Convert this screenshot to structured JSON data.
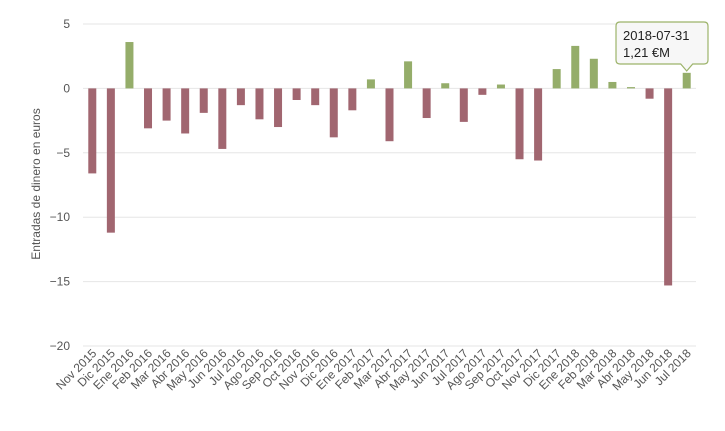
{
  "chart_data": {
    "type": "bar",
    "ylabel": "Entradas de dinero en euros",
    "xlabel": "",
    "title": "",
    "ylim": [
      -20,
      5
    ],
    "yticks": [
      5,
      0,
      -5,
      -10,
      -15,
      -20
    ],
    "grid": true,
    "legend": "none",
    "colors": {
      "positive": "#95ad6a",
      "negative": "#a16670"
    },
    "categories": [
      "Nov 2015",
      "Dic 2015",
      "Ene 2016",
      "Feb 2016",
      "Mar 2016",
      "Abr 2016",
      "May 2016",
      "Jun 2016",
      "Jul 2016",
      "Ago 2016",
      "Sep 2016",
      "Oct 2016",
      "Nov 2016",
      "Dic 2016",
      "Ene 2017",
      "Feb 2017",
      "Mar 2017",
      "Abr 2017",
      "May 2017",
      "Jun 2017",
      "Jul 2017",
      "Ago 2017",
      "Sep 2017",
      "Oct 2017",
      "Nov 2017",
      "Dic 2017",
      "Ene 2018",
      "Feb 2018",
      "Mar 2018",
      "Abr 2018",
      "May 2018",
      "Jun 2018",
      "Jul 2018"
    ],
    "values": [
      -6.6,
      -11.2,
      3.6,
      -3.1,
      -2.5,
      -3.5,
      -1.9,
      -4.7,
      -1.3,
      -2.4,
      -3.0,
      -0.9,
      -1.3,
      -3.8,
      -1.7,
      0.7,
      -4.1,
      2.1,
      -2.3,
      0.4,
      -2.6,
      -0.5,
      0.3,
      -5.5,
      -5.6,
      1.5,
      3.3,
      2.3,
      0.5,
      0.1,
      -0.8,
      -15.3,
      1.21
    ],
    "tooltip": {
      "date": "2018-07-31",
      "value": "1,21 €M",
      "index": 32
    }
  }
}
